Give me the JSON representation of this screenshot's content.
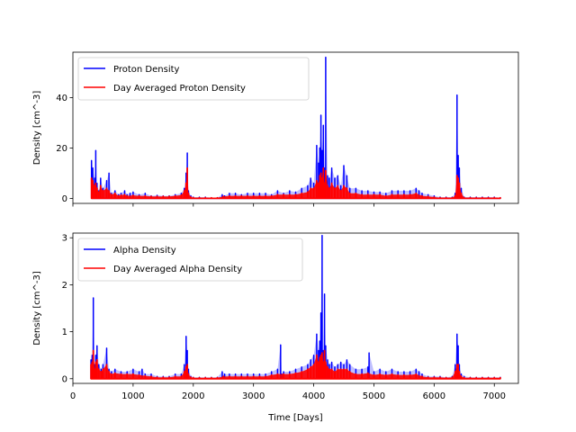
{
  "chart_data": [
    {
      "type": "line",
      "title": "",
      "xlabel": "",
      "ylabel": "Density [cm^-3]",
      "xlim": [
        0,
        7400
      ],
      "ylim": [
        -2,
        58
      ],
      "xticks": [
        0,
        1000,
        2000,
        3000,
        4000,
        5000,
        6000,
        7000
      ],
      "xtick_labels_shown": false,
      "yticks": [
        0,
        20,
        40
      ],
      "legend": "upper left",
      "series": [
        {
          "name": "Proton Density",
          "color": "#0000ff",
          "x": [
            310,
            330,
            360,
            380,
            400,
            430,
            460,
            500,
            560,
            600,
            640,
            700,
            760,
            800,
            860,
            900,
            950,
            1000,
            1100,
            1200,
            1300,
            1400,
            1500,
            1600,
            1700,
            1800,
            1850,
            1880,
            1900,
            1920,
            1960,
            2000,
            2100,
            2200,
            2300,
            2400,
            2480,
            2520,
            2600,
            2700,
            2800,
            2900,
            3000,
            3100,
            3200,
            3300,
            3400,
            3500,
            3600,
            3700,
            3800,
            3900,
            3950,
            4000,
            4050,
            4080,
            4100,
            4120,
            4140,
            4160,
            4180,
            4200,
            4230,
            4260,
            4300,
            4350,
            4400,
            4450,
            4500,
            4550,
            4600,
            4700,
            4800,
            4900,
            5000,
            5100,
            5200,
            5300,
            5400,
            5500,
            5600,
            5700,
            5750,
            5800,
            5900,
            6000,
            6100,
            6200,
            6300,
            6350,
            6380,
            6400,
            6420,
            6450,
            6500,
            6600,
            6700,
            6800,
            6900,
            7000,
            7100
          ],
          "values": [
            15,
            12,
            8,
            19,
            6,
            3,
            8,
            4,
            7,
            10,
            2,
            3,
            1.5,
            2,
            3,
            1.5,
            2,
            2.5,
            1.5,
            2,
            1,
            1.2,
            1,
            1,
            1.5,
            2,
            4,
            10,
            18,
            3,
            1,
            0.5,
            0.5,
            0.5,
            0.3,
            0.3,
            1.5,
            1,
            2,
            2,
            1.5,
            2,
            2,
            2,
            2,
            1.5,
            3,
            2,
            3,
            2.5,
            4,
            5,
            8,
            6,
            21,
            14,
            20,
            33,
            19,
            29,
            12,
            56,
            9,
            8,
            12,
            8,
            9,
            5,
            13,
            9,
            4,
            4,
            3,
            3,
            2.5,
            2.5,
            2,
            3,
            3,
            3,
            3,
            4,
            3,
            2,
            1.5,
            1,
            0.5,
            0.5,
            0.5,
            2,
            41,
            17,
            12,
            4,
            0.5,
            0.5,
            0.5,
            0.5,
            0.5,
            0.5,
            0.3
          ]
        },
        {
          "name": "Day Averaged Proton Density",
          "color": "#ff0000",
          "x": [
            310,
            330,
            360,
            380,
            400,
            430,
            460,
            500,
            560,
            600,
            640,
            700,
            760,
            800,
            860,
            900,
            1000,
            1100,
            1200,
            1300,
            1400,
            1500,
            1600,
            1700,
            1800,
            1850,
            1880,
            1900,
            1920,
            1960,
            2000,
            2100,
            2200,
            2300,
            2400,
            2500,
            2600,
            2700,
            2800,
            2900,
            3000,
            3100,
            3200,
            3300,
            3400,
            3500,
            3600,
            3700,
            3800,
            3900,
            3950,
            4000,
            4050,
            4080,
            4100,
            4120,
            4140,
            4160,
            4180,
            4200,
            4230,
            4260,
            4300,
            4350,
            4400,
            4450,
            4500,
            4550,
            4600,
            4700,
            4800,
            4900,
            5000,
            5100,
            5200,
            5300,
            5400,
            5500,
            5600,
            5700,
            5800,
            5900,
            6000,
            6100,
            6200,
            6300,
            6350,
            6380,
            6400,
            6420,
            6450,
            6500,
            6600,
            6700,
            6800,
            6900,
            7000,
            7100
          ],
          "values": [
            8,
            7,
            5,
            6,
            4,
            2.5,
            5,
            3,
            4,
            3,
            1.5,
            2,
            1,
            1.3,
            1.5,
            1,
            1.2,
            1,
            1,
            0.8,
            0.8,
            0.8,
            0.8,
            1,
            1.3,
            3,
            6,
            12,
            2,
            0.5,
            0.3,
            0.3,
            0.3,
            0.2,
            0.2,
            0.8,
            1,
            1,
            1,
            1,
            1,
            1,
            1,
            1,
            1.5,
            1.5,
            1.5,
            1.5,
            2,
            2.5,
            4,
            4,
            7,
            6,
            9,
            10,
            8,
            12,
            6,
            11,
            5,
            4,
            6,
            4,
            5,
            3,
            5,
            4,
            2,
            2,
            1.5,
            1.5,
            1.5,
            1.5,
            1,
            1.5,
            1.5,
            1.5,
            1.5,
            2,
            1,
            0.8,
            0.5,
            0.3,
            0.3,
            0.3,
            1,
            9,
            8,
            6,
            2,
            0.3,
            0.3,
            0.3,
            0.3,
            0.3,
            0.3,
            0.2
          ]
        }
      ]
    },
    {
      "type": "line",
      "title": "",
      "xlabel": "Time [Days]",
      "ylabel": "Density [cm^-3]",
      "xlim": [
        0,
        7400
      ],
      "ylim": [
        -0.1,
        3.1
      ],
      "xticks": [
        0,
        1000,
        2000,
        3000,
        4000,
        5000,
        6000,
        7000
      ],
      "xtick_labels_shown": true,
      "yticks": [
        0,
        1,
        2,
        3
      ],
      "legend": "upper left",
      "series": [
        {
          "name": "Alpha Density",
          "color": "#0000ff",
          "x": [
            300,
            320,
            340,
            360,
            380,
            400,
            430,
            470,
            500,
            560,
            600,
            640,
            700,
            800,
            900,
            1000,
            1100,
            1150,
            1200,
            1300,
            1400,
            1500,
            1600,
            1700,
            1800,
            1850,
            1880,
            1900,
            1920,
            1960,
            2000,
            2100,
            2200,
            2300,
            2400,
            2480,
            2520,
            2600,
            2700,
            2800,
            2900,
            3000,
            3100,
            3200,
            3300,
            3400,
            3450,
            3470,
            3500,
            3600,
            3700,
            3800,
            3900,
            3950,
            4000,
            4050,
            4080,
            4100,
            4120,
            4140,
            4160,
            4180,
            4200,
            4230,
            4260,
            4300,
            4350,
            4400,
            4450,
            4500,
            4550,
            4600,
            4700,
            4800,
            4900,
            4920,
            5000,
            5100,
            5200,
            5300,
            5400,
            5500,
            5600,
            5700,
            5750,
            5800,
            5900,
            6000,
            6100,
            6200,
            6300,
            6350,
            6380,
            6400,
            6420,
            6450,
            6500,
            6600,
            6700,
            6800,
            6900,
            7000,
            7100
          ],
          "values": [
            0.4,
            0.5,
            1.72,
            0.3,
            0.5,
            0.7,
            0.3,
            0.2,
            0.3,
            0.65,
            0.2,
            0.15,
            0.2,
            0.15,
            0.15,
            0.2,
            0.15,
            0.2,
            0.1,
            0.1,
            0.05,
            0.05,
            0.05,
            0.1,
            0.1,
            0.3,
            0.9,
            0.6,
            0.2,
            0.05,
            0.03,
            0.03,
            0.03,
            0.03,
            0.03,
            0.15,
            0.1,
            0.1,
            0.1,
            0.1,
            0.1,
            0.1,
            0.1,
            0.1,
            0.15,
            0.2,
            0.72,
            0.1,
            0.15,
            0.15,
            0.2,
            0.25,
            0.3,
            0.4,
            0.5,
            0.95,
            0.6,
            0.8,
            1.4,
            3.05,
            0.6,
            1.8,
            0.7,
            0.4,
            0.3,
            0.35,
            0.25,
            0.3,
            0.35,
            0.3,
            0.4,
            0.3,
            0.2,
            0.2,
            0.25,
            0.55,
            0.15,
            0.2,
            0.15,
            0.2,
            0.15,
            0.15,
            0.15,
            0.2,
            0.15,
            0.1,
            0.05,
            0.05,
            0.05,
            0.03,
            0.05,
            0.3,
            0.95,
            0.7,
            0.3,
            0.1,
            0.05,
            0.03,
            0.03,
            0.03,
            0.03,
            0.03,
            0.03
          ]
        },
        {
          "name": "Day Averaged Alpha Density",
          "color": "#ff0000",
          "x": [
            300,
            320,
            340,
            360,
            380,
            400,
            430,
            470,
            500,
            560,
            600,
            640,
            700,
            800,
            900,
            1000,
            1100,
            1200,
            1300,
            1400,
            1500,
            1600,
            1700,
            1800,
            1850,
            1880,
            1900,
            1920,
            1960,
            2000,
            2100,
            2200,
            2300,
            2400,
            2500,
            2600,
            2700,
            2800,
            2900,
            3000,
            3100,
            3200,
            3300,
            3400,
            3500,
            3600,
            3700,
            3800,
            3900,
            3950,
            4000,
            4050,
            4080,
            4100,
            4120,
            4140,
            4160,
            4180,
            4200,
            4230,
            4260,
            4300,
            4350,
            4400,
            4450,
            4500,
            4550,
            4600,
            4700,
            4800,
            4900,
            5000,
            5100,
            5200,
            5300,
            5400,
            5500,
            5600,
            5700,
            5800,
            5900,
            6000,
            6100,
            6200,
            6300,
            6350,
            6380,
            6400,
            6420,
            6450,
            6500,
            6600,
            6700,
            6800,
            6900,
            7000,
            7100
          ],
          "values": [
            0.3,
            0.35,
            0.6,
            0.2,
            0.35,
            0.4,
            0.2,
            0.15,
            0.2,
            0.3,
            0.15,
            0.1,
            0.12,
            0.1,
            0.1,
            0.1,
            0.08,
            0.06,
            0.05,
            0.03,
            0.03,
            0.03,
            0.05,
            0.05,
            0.15,
            0.25,
            0.3,
            0.1,
            0.03,
            0.02,
            0.02,
            0.02,
            0.02,
            0.02,
            0.05,
            0.05,
            0.05,
            0.05,
            0.05,
            0.05,
            0.05,
            0.05,
            0.08,
            0.1,
            0.1,
            0.1,
            0.12,
            0.15,
            0.2,
            0.25,
            0.3,
            0.5,
            0.35,
            0.45,
            0.5,
            0.55,
            0.35,
            0.6,
            0.35,
            0.25,
            0.2,
            0.2,
            0.15,
            0.2,
            0.2,
            0.2,
            0.2,
            0.15,
            0.1,
            0.1,
            0.12,
            0.08,
            0.1,
            0.08,
            0.1,
            0.08,
            0.08,
            0.08,
            0.1,
            0.05,
            0.03,
            0.03,
            0.03,
            0.02,
            0.03,
            0.15,
            0.3,
            0.3,
            0.15,
            0.05,
            0.02,
            0.02,
            0.02,
            0.02,
            0.02,
            0.02,
            0.02
          ]
        }
      ]
    }
  ]
}
